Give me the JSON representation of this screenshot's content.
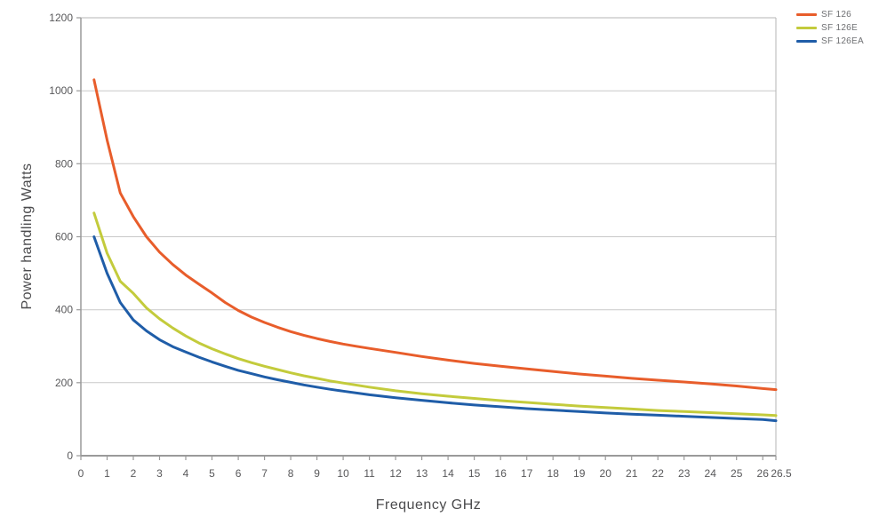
{
  "chart_data": {
    "type": "line",
    "title": "",
    "xlabel": "Frequency GHz",
    "ylabel": "Power handling Watts",
    "xlim": [
      0,
      26.5
    ],
    "ylim": [
      0,
      1200
    ],
    "x_ticks": [
      0,
      1,
      2,
      3,
      4,
      5,
      6,
      7,
      8,
      9,
      10,
      11,
      12,
      13,
      14,
      15,
      16,
      17,
      18,
      19,
      20,
      21,
      22,
      23,
      24,
      25,
      26,
      26.5
    ],
    "y_ticks": [
      0,
      200,
      400,
      600,
      800,
      1000,
      1200
    ],
    "grid": "horizontal-only",
    "legend_position": "top-right-outside",
    "colors": {
      "grid": "#c9c9c9",
      "axis": "#9a9a9a",
      "border": "#b4b4b4",
      "tick_text": "#58585a",
      "axis_title_text": "#4b4b4d",
      "legend_text": "#6e6f72"
    },
    "series": [
      {
        "name": "SF 126",
        "color": "#e85d2b",
        "points": [
          [
            0.5,
            1030
          ],
          [
            1,
            865
          ],
          [
            1.5,
            720
          ],
          [
            2,
            655
          ],
          [
            2.5,
            600
          ],
          [
            3,
            558
          ],
          [
            3.5,
            524
          ],
          [
            4,
            495
          ],
          [
            4.5,
            470
          ],
          [
            5,
            446
          ],
          [
            5.5,
            420
          ],
          [
            6,
            398
          ],
          [
            6.5,
            380
          ],
          [
            7,
            365
          ],
          [
            7.5,
            352
          ],
          [
            8,
            340
          ],
          [
            8.5,
            330
          ],
          [
            9,
            321
          ],
          [
            9.5,
            313
          ],
          [
            10,
            306
          ],
          [
            10.5,
            300
          ],
          [
            11,
            294
          ],
          [
            12,
            283
          ],
          [
            13,
            272
          ],
          [
            14,
            262
          ],
          [
            15,
            253
          ],
          [
            16,
            245
          ],
          [
            17,
            238
          ],
          [
            18,
            231
          ],
          [
            19,
            224
          ],
          [
            20,
            218
          ],
          [
            21,
            212
          ],
          [
            22,
            207
          ],
          [
            23,
            202
          ],
          [
            24,
            197
          ],
          [
            25,
            191
          ],
          [
            26,
            184
          ],
          [
            26.5,
            181
          ]
        ]
      },
      {
        "name": "SF 126E",
        "color": "#c3cb3c",
        "points": [
          [
            0.5,
            665
          ],
          [
            1,
            555
          ],
          [
            1.5,
            478
          ],
          [
            2,
            445
          ],
          [
            2.5,
            405
          ],
          [
            3,
            375
          ],
          [
            3.5,
            350
          ],
          [
            4,
            328
          ],
          [
            4.5,
            309
          ],
          [
            5,
            293
          ],
          [
            5.5,
            279
          ],
          [
            6,
            266
          ],
          [
            6.5,
            255
          ],
          [
            7,
            245
          ],
          [
            7.5,
            236
          ],
          [
            8,
            227
          ],
          [
            8.5,
            219
          ],
          [
            9,
            212
          ],
          [
            9.5,
            205
          ],
          [
            10,
            199
          ],
          [
            11,
            188
          ],
          [
            12,
            178
          ],
          [
            13,
            170
          ],
          [
            14,
            163
          ],
          [
            15,
            157
          ],
          [
            16,
            151
          ],
          [
            17,
            146
          ],
          [
            18,
            141
          ],
          [
            19,
            136
          ],
          [
            20,
            132
          ],
          [
            21,
            128
          ],
          [
            22,
            124
          ],
          [
            23,
            121
          ],
          [
            24,
            118
          ],
          [
            25,
            115
          ],
          [
            26,
            112
          ],
          [
            26.5,
            110
          ]
        ]
      },
      {
        "name": "SF 126EA",
        "color": "#1f5da8",
        "points": [
          [
            0.5,
            600
          ],
          [
            1,
            500
          ],
          [
            1.5,
            420
          ],
          [
            2,
            372
          ],
          [
            2.5,
            342
          ],
          [
            3,
            318
          ],
          [
            3.5,
            299
          ],
          [
            4,
            284
          ],
          [
            4.5,
            270
          ],
          [
            5,
            257
          ],
          [
            5.5,
            245
          ],
          [
            6,
            234
          ],
          [
            6.5,
            225
          ],
          [
            7,
            216
          ],
          [
            7.5,
            208
          ],
          [
            8,
            201
          ],
          [
            8.5,
            194
          ],
          [
            9,
            188
          ],
          [
            9.5,
            182
          ],
          [
            10,
            177
          ],
          [
            11,
            167
          ],
          [
            12,
            159
          ],
          [
            13,
            152
          ],
          [
            14,
            145
          ],
          [
            15,
            139
          ],
          [
            16,
            134
          ],
          [
            17,
            129
          ],
          [
            18,
            125
          ],
          [
            19,
            121
          ],
          [
            20,
            117
          ],
          [
            21,
            114
          ],
          [
            22,
            111
          ],
          [
            23,
            108
          ],
          [
            24,
            105
          ],
          [
            25,
            102
          ],
          [
            26,
            99
          ],
          [
            26.5,
            96
          ]
        ]
      }
    ]
  }
}
